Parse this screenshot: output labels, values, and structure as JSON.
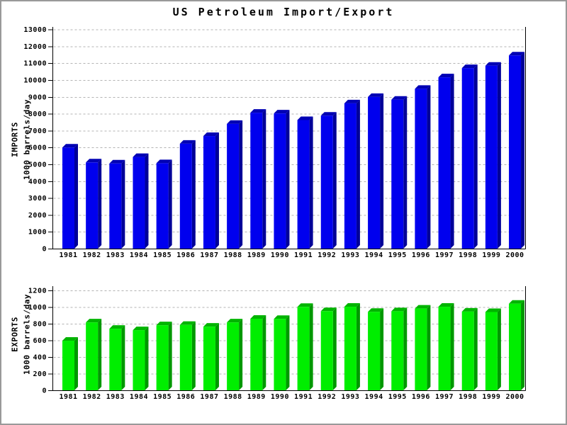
{
  "title": "US Petroleum Import/Export",
  "axis_style": {
    "axis_color": "#000000",
    "grid_color": "#b3b3b3",
    "grid_dash": "3,3"
  },
  "chart_data": [
    {
      "type": "bar",
      "name": "imports",
      "title": "US Petroleum Import/Export",
      "ylabel_lines": [
        "IMPORTS",
        "1000 barrels/day"
      ],
      "ylabel": "IMPORTS (1000 barrels/day)",
      "xlabel": "",
      "legend": "none",
      "grid": true,
      "categories": [
        "1981",
        "1982",
        "1983",
        "1984",
        "1985",
        "1986",
        "1987",
        "1988",
        "1989",
        "1990",
        "1991",
        "1992",
        "1993",
        "1994",
        "1995",
        "1996",
        "1997",
        "1998",
        "1999",
        "2000"
      ],
      "values": [
        5996,
        5113,
        5051,
        5437,
        5067,
        6224,
        6678,
        7402,
        8061,
        8018,
        7627,
        7888,
        8620,
        8996,
        8835,
        9478,
        10162,
        10708,
        10852,
        11459
      ],
      "ylim": [
        0,
        13150
      ],
      "ytick_step": 1000,
      "ytick_max": 13000,
      "bar_color_front": "#0000EE",
      "bar_color_top": "#0000B4",
      "bar_color_side": "#000098"
    },
    {
      "type": "bar",
      "name": "exports",
      "title": "",
      "ylabel_lines": [
        "EXPORTS",
        "1000 barrels/day"
      ],
      "ylabel": "EXPORTS (1000 barrels/day)",
      "xlabel": "",
      "legend": "none",
      "grid": true,
      "categories": [
        "1981",
        "1982",
        "1983",
        "1984",
        "1985",
        "1986",
        "1987",
        "1988",
        "1989",
        "1990",
        "1991",
        "1992",
        "1993",
        "1994",
        "1995",
        "1996",
        "1997",
        "1998",
        "1999",
        "2000"
      ],
      "values": [
        595,
        815,
        739,
        722,
        781,
        785,
        764,
        815,
        859,
        857,
        1001,
        950,
        1003,
        942,
        949,
        981,
        1003,
        945,
        940,
        1040
      ],
      "ylim": [
        0,
        1250
      ],
      "ytick_step": 200,
      "ytick_max": 1200,
      "bar_color_front": "#00EE00",
      "bar_color_top": "#00B400",
      "bar_color_side": "#009800"
    }
  ]
}
